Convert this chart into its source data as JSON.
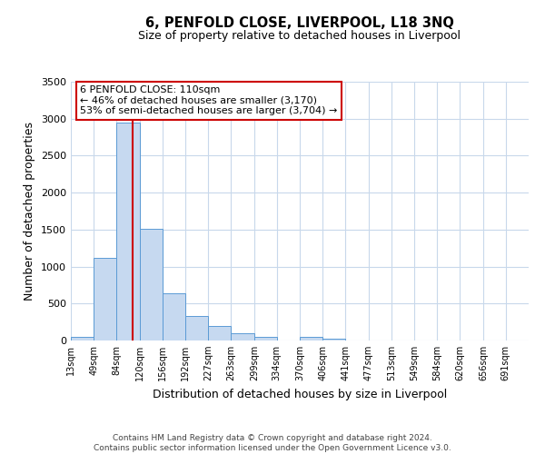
{
  "title": "6, PENFOLD CLOSE, LIVERPOOL, L18 3NQ",
  "subtitle": "Size of property relative to detached houses in Liverpool",
  "xlabel": "Distribution of detached houses by size in Liverpool",
  "ylabel": "Number of detached properties",
  "bar_color": "#c6d9f0",
  "bar_edge_color": "#5b9bd5",
  "background_color": "#ffffff",
  "grid_color": "#c8d8eb",
  "annotation_box_color": "#ffffff",
  "annotation_box_edge": "#cc0000",
  "vline_color": "#cc0000",
  "vline_x": 110,
  "annotation_line1": "6 PENFOLD CLOSE: 110sqm",
  "annotation_line2": "← 46% of detached houses are smaller (3,170)",
  "annotation_line3": "53% of semi-detached houses are larger (3,704) →",
  "footer_line1": "Contains HM Land Registry data © Crown copyright and database right 2024.",
  "footer_line2": "Contains public sector information licensed under the Open Government Licence v3.0.",
  "bin_edges": [
    13,
    49,
    84,
    120,
    156,
    192,
    227,
    263,
    299,
    334,
    370,
    406,
    441,
    477,
    513,
    549,
    584,
    620,
    656,
    691,
    727
  ],
  "bin_counts": [
    50,
    1115,
    2950,
    1510,
    640,
    335,
    195,
    100,
    50,
    0,
    55,
    25,
    0,
    0,
    0,
    0,
    0,
    0,
    0,
    0
  ],
  "ylim": [
    0,
    3500
  ],
  "yticks": [
    0,
    500,
    1000,
    1500,
    2000,
    2500,
    3000,
    3500
  ]
}
